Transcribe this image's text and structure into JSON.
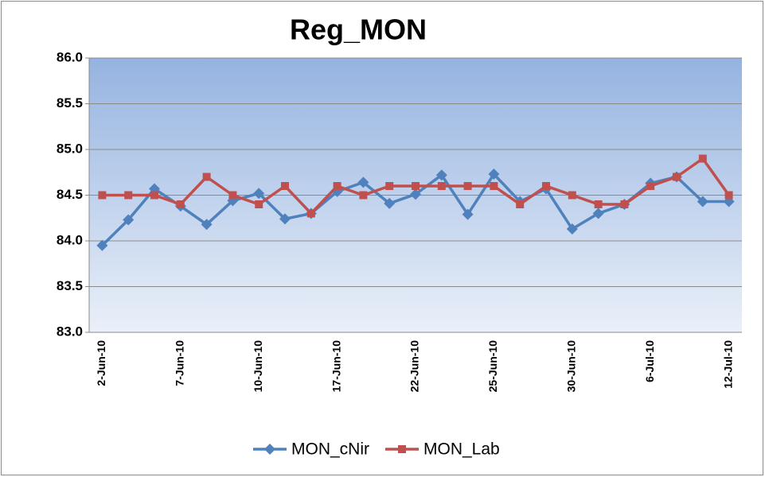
{
  "chart_data": {
    "type": "line",
    "title": "Reg_MON",
    "categories": [
      "2-Jun-10",
      null,
      null,
      "7-Jun-10",
      null,
      null,
      "10-Jun-10",
      null,
      null,
      "17-Jun-10",
      null,
      null,
      "22-Jun-10",
      null,
      null,
      "25-Jun-10",
      null,
      null,
      "30-Jun-10",
      null,
      null,
      "6-Jul-10",
      null,
      null,
      "12-Jul-10"
    ],
    "series": [
      {
        "name": "MON_cNir",
        "color": "#4f81bd",
        "marker": "diamond",
        "values": [
          83.95,
          84.23,
          84.57,
          84.38,
          84.18,
          84.44,
          84.52,
          84.24,
          84.3,
          84.54,
          84.64,
          84.41,
          84.51,
          84.72,
          84.29,
          84.73,
          84.43,
          84.57,
          84.13,
          84.3,
          84.4,
          84.63,
          84.7,
          84.43,
          84.43
        ]
      },
      {
        "name": "MON_Lab",
        "color": "#c0504d",
        "marker": "square",
        "values": [
          84.5,
          84.5,
          84.5,
          84.4,
          84.7,
          84.5,
          84.4,
          84.6,
          84.3,
          84.6,
          84.5,
          84.6,
          84.6,
          84.6,
          84.6,
          84.6,
          84.4,
          84.6,
          84.5,
          84.4,
          84.4,
          84.6,
          84.7,
          84.9,
          84.5
        ]
      }
    ],
    "ylim": [
      83,
      86
    ],
    "yticks": [
      {
        "value": 83,
        "label": "83.0"
      },
      {
        "value": 83.5,
        "label": "83.5"
      },
      {
        "value": 84,
        "label": "84.0"
      },
      {
        "value": 84.5,
        "label": "84.5"
      },
      {
        "value": 85,
        "label": "85.0"
      },
      {
        "value": 85.5,
        "label": "85.5"
      },
      {
        "value": 86,
        "label": "86.0"
      }
    ],
    "grid": true,
    "legend": "bottom"
  }
}
